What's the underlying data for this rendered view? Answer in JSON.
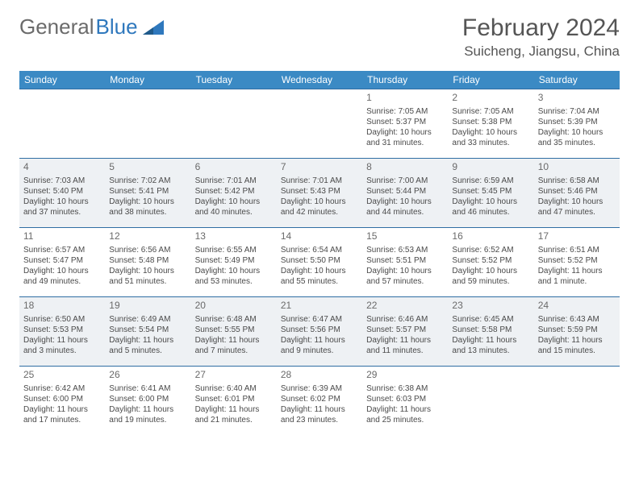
{
  "logo": {
    "text1": "General",
    "text2": "Blue"
  },
  "header": {
    "month_year": "February 2024",
    "location": "Suicheng, Jiangsu, China"
  },
  "colors": {
    "header_bg": "#3b8ac4",
    "row_border": "#2f6da3",
    "alt_row_bg": "#eef1f4",
    "text": "#4a4a4a",
    "title_text": "#555555",
    "logo_gray": "#6b6b6b",
    "logo_blue": "#2f78bd"
  },
  "day_headers": [
    "Sunday",
    "Monday",
    "Tuesday",
    "Wednesday",
    "Thursday",
    "Friday",
    "Saturday"
  ],
  "weeks": [
    {
      "alt": false,
      "cells": [
        null,
        null,
        null,
        null,
        {
          "n": "1",
          "sr": "Sunrise: 7:05 AM",
          "ss": "Sunset: 5:37 PM",
          "d1": "Daylight: 10 hours",
          "d2": "and 31 minutes."
        },
        {
          "n": "2",
          "sr": "Sunrise: 7:05 AM",
          "ss": "Sunset: 5:38 PM",
          "d1": "Daylight: 10 hours",
          "d2": "and 33 minutes."
        },
        {
          "n": "3",
          "sr": "Sunrise: 7:04 AM",
          "ss": "Sunset: 5:39 PM",
          "d1": "Daylight: 10 hours",
          "d2": "and 35 minutes."
        }
      ]
    },
    {
      "alt": true,
      "cells": [
        {
          "n": "4",
          "sr": "Sunrise: 7:03 AM",
          "ss": "Sunset: 5:40 PM",
          "d1": "Daylight: 10 hours",
          "d2": "and 37 minutes."
        },
        {
          "n": "5",
          "sr": "Sunrise: 7:02 AM",
          "ss": "Sunset: 5:41 PM",
          "d1": "Daylight: 10 hours",
          "d2": "and 38 minutes."
        },
        {
          "n": "6",
          "sr": "Sunrise: 7:01 AM",
          "ss": "Sunset: 5:42 PM",
          "d1": "Daylight: 10 hours",
          "d2": "and 40 minutes."
        },
        {
          "n": "7",
          "sr": "Sunrise: 7:01 AM",
          "ss": "Sunset: 5:43 PM",
          "d1": "Daylight: 10 hours",
          "d2": "and 42 minutes."
        },
        {
          "n": "8",
          "sr": "Sunrise: 7:00 AM",
          "ss": "Sunset: 5:44 PM",
          "d1": "Daylight: 10 hours",
          "d2": "and 44 minutes."
        },
        {
          "n": "9",
          "sr": "Sunrise: 6:59 AM",
          "ss": "Sunset: 5:45 PM",
          "d1": "Daylight: 10 hours",
          "d2": "and 46 minutes."
        },
        {
          "n": "10",
          "sr": "Sunrise: 6:58 AM",
          "ss": "Sunset: 5:46 PM",
          "d1": "Daylight: 10 hours",
          "d2": "and 47 minutes."
        }
      ]
    },
    {
      "alt": false,
      "cells": [
        {
          "n": "11",
          "sr": "Sunrise: 6:57 AM",
          "ss": "Sunset: 5:47 PM",
          "d1": "Daylight: 10 hours",
          "d2": "and 49 minutes."
        },
        {
          "n": "12",
          "sr": "Sunrise: 6:56 AM",
          "ss": "Sunset: 5:48 PM",
          "d1": "Daylight: 10 hours",
          "d2": "and 51 minutes."
        },
        {
          "n": "13",
          "sr": "Sunrise: 6:55 AM",
          "ss": "Sunset: 5:49 PM",
          "d1": "Daylight: 10 hours",
          "d2": "and 53 minutes."
        },
        {
          "n": "14",
          "sr": "Sunrise: 6:54 AM",
          "ss": "Sunset: 5:50 PM",
          "d1": "Daylight: 10 hours",
          "d2": "and 55 minutes."
        },
        {
          "n": "15",
          "sr": "Sunrise: 6:53 AM",
          "ss": "Sunset: 5:51 PM",
          "d1": "Daylight: 10 hours",
          "d2": "and 57 minutes."
        },
        {
          "n": "16",
          "sr": "Sunrise: 6:52 AM",
          "ss": "Sunset: 5:52 PM",
          "d1": "Daylight: 10 hours",
          "d2": "and 59 minutes."
        },
        {
          "n": "17",
          "sr": "Sunrise: 6:51 AM",
          "ss": "Sunset: 5:52 PM",
          "d1": "Daylight: 11 hours",
          "d2": "and 1 minute."
        }
      ]
    },
    {
      "alt": true,
      "cells": [
        {
          "n": "18",
          "sr": "Sunrise: 6:50 AM",
          "ss": "Sunset: 5:53 PM",
          "d1": "Daylight: 11 hours",
          "d2": "and 3 minutes."
        },
        {
          "n": "19",
          "sr": "Sunrise: 6:49 AM",
          "ss": "Sunset: 5:54 PM",
          "d1": "Daylight: 11 hours",
          "d2": "and 5 minutes."
        },
        {
          "n": "20",
          "sr": "Sunrise: 6:48 AM",
          "ss": "Sunset: 5:55 PM",
          "d1": "Daylight: 11 hours",
          "d2": "and 7 minutes."
        },
        {
          "n": "21",
          "sr": "Sunrise: 6:47 AM",
          "ss": "Sunset: 5:56 PM",
          "d1": "Daylight: 11 hours",
          "d2": "and 9 minutes."
        },
        {
          "n": "22",
          "sr": "Sunrise: 6:46 AM",
          "ss": "Sunset: 5:57 PM",
          "d1": "Daylight: 11 hours",
          "d2": "and 11 minutes."
        },
        {
          "n": "23",
          "sr": "Sunrise: 6:45 AM",
          "ss": "Sunset: 5:58 PM",
          "d1": "Daylight: 11 hours",
          "d2": "and 13 minutes."
        },
        {
          "n": "24",
          "sr": "Sunrise: 6:43 AM",
          "ss": "Sunset: 5:59 PM",
          "d1": "Daylight: 11 hours",
          "d2": "and 15 minutes."
        }
      ]
    },
    {
      "alt": false,
      "cells": [
        {
          "n": "25",
          "sr": "Sunrise: 6:42 AM",
          "ss": "Sunset: 6:00 PM",
          "d1": "Daylight: 11 hours",
          "d2": "and 17 minutes."
        },
        {
          "n": "26",
          "sr": "Sunrise: 6:41 AM",
          "ss": "Sunset: 6:00 PM",
          "d1": "Daylight: 11 hours",
          "d2": "and 19 minutes."
        },
        {
          "n": "27",
          "sr": "Sunrise: 6:40 AM",
          "ss": "Sunset: 6:01 PM",
          "d1": "Daylight: 11 hours",
          "d2": "and 21 minutes."
        },
        {
          "n": "28",
          "sr": "Sunrise: 6:39 AM",
          "ss": "Sunset: 6:02 PM",
          "d1": "Daylight: 11 hours",
          "d2": "and 23 minutes."
        },
        {
          "n": "29",
          "sr": "Sunrise: 6:38 AM",
          "ss": "Sunset: 6:03 PM",
          "d1": "Daylight: 11 hours",
          "d2": "and 25 minutes."
        },
        null,
        null
      ]
    }
  ]
}
